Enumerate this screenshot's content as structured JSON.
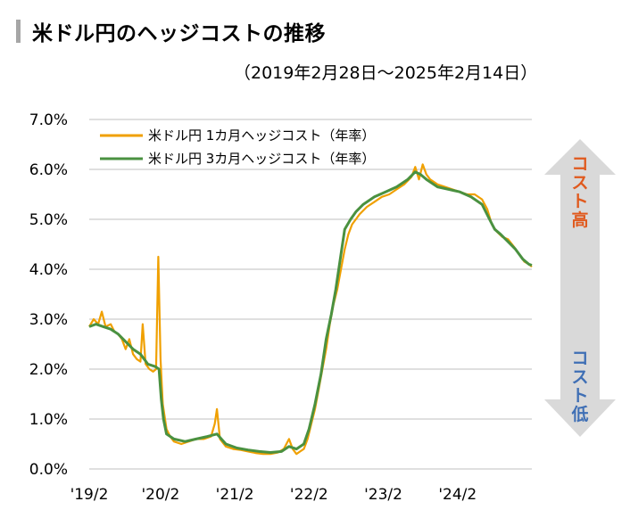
{
  "header": {
    "title": "米ドル円のヘッジコストの推移",
    "period": "（2019年2月28日～2025年2月14日）"
  },
  "arrow": {
    "top_label": "コスト高",
    "bottom_label": "コスト低",
    "top_color": "#e05a1e",
    "bottom_color": "#3f6fb5",
    "fill_color": "#d9d9d9"
  },
  "chart_data": {
    "type": "line",
    "title": "米ドル円のヘッジコストの推移",
    "y_tick_labels": [
      "0.0%",
      "1.0%",
      "2.0%",
      "3.0%",
      "4.0%",
      "5.0%",
      "6.0%",
      "7.0%"
    ],
    "x_tick_labels": [
      "'19/2",
      "'20/2",
      "'21/2",
      "'22/2",
      "'23/2",
      "'24/2"
    ],
    "ylim": [
      0,
      7
    ],
    "xlim": [
      2019.16,
      2025.12
    ],
    "grid": true,
    "legend_position": "top-left",
    "series": [
      {
        "name": "米ドル円 1カ月ヘッジコスト（年率）",
        "color": "#f0a000",
        "points": [
          [
            2019.16,
            2.85
          ],
          [
            2019.22,
            3.0
          ],
          [
            2019.28,
            2.9
          ],
          [
            2019.33,
            3.15
          ],
          [
            2019.38,
            2.85
          ],
          [
            2019.45,
            2.9
          ],
          [
            2019.5,
            2.75
          ],
          [
            2019.55,
            2.7
          ],
          [
            2019.6,
            2.6
          ],
          [
            2019.65,
            2.4
          ],
          [
            2019.7,
            2.6
          ],
          [
            2019.75,
            2.3
          ],
          [
            2019.8,
            2.2
          ],
          [
            2019.85,
            2.15
          ],
          [
            2019.88,
            2.9
          ],
          [
            2019.92,
            2.1
          ],
          [
            2019.97,
            2.0
          ],
          [
            2020.02,
            1.95
          ],
          [
            2020.06,
            2.0
          ],
          [
            2020.09,
            4.25
          ],
          [
            2020.12,
            2.2
          ],
          [
            2020.15,
            1.3
          ],
          [
            2020.2,
            0.8
          ],
          [
            2020.25,
            0.65
          ],
          [
            2020.3,
            0.55
          ],
          [
            2020.4,
            0.5
          ],
          [
            2020.5,
            0.55
          ],
          [
            2020.6,
            0.6
          ],
          [
            2020.7,
            0.6
          ],
          [
            2020.8,
            0.65
          ],
          [
            2020.85,
            0.9
          ],
          [
            2020.88,
            1.2
          ],
          [
            2020.92,
            0.6
          ],
          [
            2021.0,
            0.45
          ],
          [
            2021.1,
            0.4
          ],
          [
            2021.2,
            0.38
          ],
          [
            2021.3,
            0.35
          ],
          [
            2021.4,
            0.32
          ],
          [
            2021.5,
            0.3
          ],
          [
            2021.6,
            0.3
          ],
          [
            2021.7,
            0.33
          ],
          [
            2021.78,
            0.4
          ],
          [
            2021.85,
            0.6
          ],
          [
            2021.9,
            0.4
          ],
          [
            2021.95,
            0.3
          ],
          [
            2022.0,
            0.35
          ],
          [
            2022.05,
            0.4
          ],
          [
            2022.1,
            0.6
          ],
          [
            2022.15,
            0.9
          ],
          [
            2022.2,
            1.2
          ],
          [
            2022.25,
            1.6
          ],
          [
            2022.3,
            2.0
          ],
          [
            2022.35,
            2.4
          ],
          [
            2022.4,
            2.9
          ],
          [
            2022.45,
            3.3
          ],
          [
            2022.5,
            3.6
          ],
          [
            2022.55,
            4.0
          ],
          [
            2022.6,
            4.4
          ],
          [
            2022.65,
            4.7
          ],
          [
            2022.7,
            4.9
          ],
          [
            2022.75,
            5.0
          ],
          [
            2022.8,
            5.1
          ],
          [
            2022.9,
            5.25
          ],
          [
            2023.0,
            5.35
          ],
          [
            2023.1,
            5.45
          ],
          [
            2023.2,
            5.5
          ],
          [
            2023.3,
            5.6
          ],
          [
            2023.4,
            5.7
          ],
          [
            2023.5,
            5.85
          ],
          [
            2023.55,
            6.05
          ],
          [
            2023.6,
            5.8
          ],
          [
            2023.65,
            6.1
          ],
          [
            2023.7,
            5.9
          ],
          [
            2023.75,
            5.8
          ],
          [
            2023.85,
            5.7
          ],
          [
            2023.95,
            5.65
          ],
          [
            2024.05,
            5.6
          ],
          [
            2024.15,
            5.55
          ],
          [
            2024.25,
            5.5
          ],
          [
            2024.35,
            5.5
          ],
          [
            2024.45,
            5.4
          ],
          [
            2024.52,
            5.2
          ],
          [
            2024.58,
            4.9
          ],
          [
            2024.65,
            4.75
          ],
          [
            2024.72,
            4.65
          ],
          [
            2024.8,
            4.6
          ],
          [
            2024.88,
            4.45
          ],
          [
            2024.95,
            4.3
          ],
          [
            2025.02,
            4.15
          ],
          [
            2025.08,
            4.1
          ],
          [
            2025.12,
            4.05
          ]
        ]
      },
      {
        "name": "米ドル円 3カ月ヘッジコスト（年率）",
        "color": "#4a9140",
        "points": [
          [
            2019.16,
            2.85
          ],
          [
            2019.25,
            2.9
          ],
          [
            2019.35,
            2.85
          ],
          [
            2019.45,
            2.8
          ],
          [
            2019.55,
            2.7
          ],
          [
            2019.65,
            2.55
          ],
          [
            2019.75,
            2.4
          ],
          [
            2019.85,
            2.3
          ],
          [
            2019.95,
            2.1
          ],
          [
            2020.05,
            2.05
          ],
          [
            2020.1,
            2.0
          ],
          [
            2020.13,
            1.4
          ],
          [
            2020.16,
            1.0
          ],
          [
            2020.2,
            0.7
          ],
          [
            2020.3,
            0.6
          ],
          [
            2020.45,
            0.55
          ],
          [
            2020.6,
            0.6
          ],
          [
            2020.75,
            0.65
          ],
          [
            2020.88,
            0.7
          ],
          [
            2021.0,
            0.5
          ],
          [
            2021.15,
            0.42
          ],
          [
            2021.3,
            0.38
          ],
          [
            2021.45,
            0.35
          ],
          [
            2021.6,
            0.33
          ],
          [
            2021.75,
            0.35
          ],
          [
            2021.85,
            0.45
          ],
          [
            2021.95,
            0.4
          ],
          [
            2022.05,
            0.5
          ],
          [
            2022.12,
            0.8
          ],
          [
            2022.2,
            1.3
          ],
          [
            2022.28,
            1.9
          ],
          [
            2022.35,
            2.6
          ],
          [
            2022.42,
            3.1
          ],
          [
            2022.48,
            3.6
          ],
          [
            2022.55,
            4.3
          ],
          [
            2022.6,
            4.8
          ],
          [
            2022.68,
            5.0
          ],
          [
            2022.75,
            5.15
          ],
          [
            2022.85,
            5.3
          ],
          [
            2023.0,
            5.45
          ],
          [
            2023.15,
            5.55
          ],
          [
            2023.3,
            5.65
          ],
          [
            2023.45,
            5.8
          ],
          [
            2023.55,
            5.95
          ],
          [
            2023.62,
            5.9
          ],
          [
            2023.7,
            5.8
          ],
          [
            2023.85,
            5.65
          ],
          [
            2024.0,
            5.6
          ],
          [
            2024.15,
            5.55
          ],
          [
            2024.3,
            5.45
          ],
          [
            2024.45,
            5.3
          ],
          [
            2024.55,
            5.0
          ],
          [
            2024.62,
            4.8
          ],
          [
            2024.7,
            4.7
          ],
          [
            2024.8,
            4.55
          ],
          [
            2024.9,
            4.4
          ],
          [
            2025.0,
            4.2
          ],
          [
            2025.08,
            4.1
          ],
          [
            2025.12,
            4.08
          ]
        ]
      }
    ]
  }
}
